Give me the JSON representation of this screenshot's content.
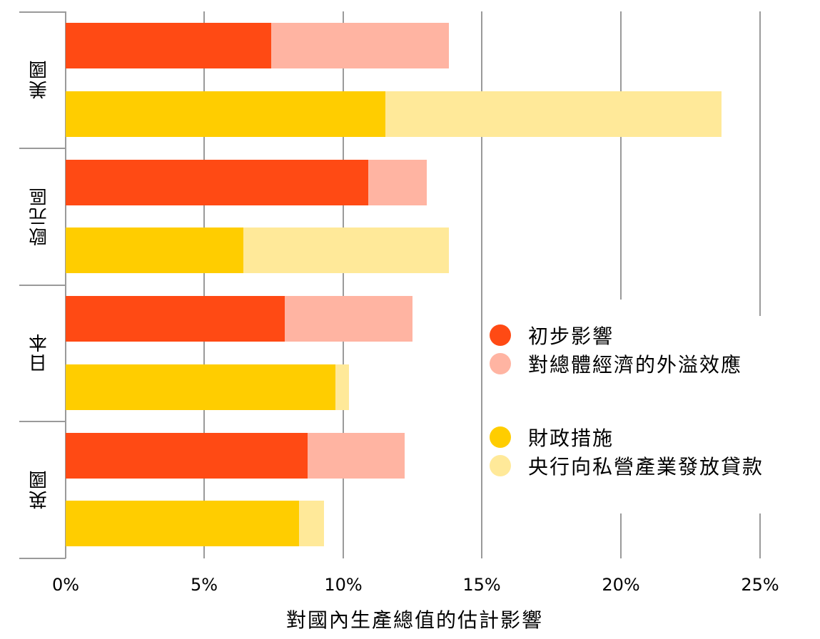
{
  "chart_data": {
    "type": "bar",
    "orientation": "horizontal",
    "stacked": true,
    "title": "",
    "xlabel": "對國內生產總值的估計影響",
    "ylabel": "",
    "xlim": [
      0,
      25
    ],
    "x_ticks": [
      "0%",
      "5%",
      "10%",
      "15%",
      "20%",
      "25%"
    ],
    "grid": true,
    "legend_position": "right-middle",
    "categories": [
      "美國",
      "歐元區",
      "日本",
      "英國"
    ],
    "bar_groups": [
      {
        "name": "財政措施 (紅)",
        "rows": "first bar in each category"
      },
      {
        "name": "央行向私營產業發放貸款 (黃)",
        "rows": "second bar in each category"
      }
    ],
    "series": [
      {
        "name": "初步影響",
        "color": "#FF4A14",
        "bar": "red",
        "values": [
          7.4,
          10.9,
          7.9,
          8.7
        ]
      },
      {
        "name": "對總體經濟的外溢效應",
        "color": "#FFB4A2",
        "bar": "red",
        "values": [
          6.4,
          2.1,
          4.6,
          3.5
        ]
      },
      {
        "name": "財政措施",
        "color": "#FFCD00",
        "bar": "yellow",
        "values": [
          11.5,
          6.4,
          9.7,
          8.4
        ]
      },
      {
        "name": "央行向私營產業發放貸款",
        "color": "#FFE999",
        "bar": "yellow",
        "values": [
          12.1,
          7.4,
          0.5,
          0.9
        ]
      }
    ],
    "totals": {
      "red": [
        13.8,
        13.0,
        12.5,
        12.2
      ],
      "yellow": [
        23.6,
        13.8,
        10.2,
        9.3
      ]
    }
  },
  "labels": {
    "categories": [
      "美國",
      "歐元區",
      "日本",
      "英國"
    ],
    "ticks": [
      "0%",
      "5%",
      "10%",
      "15%",
      "20%",
      "25%"
    ],
    "x_title": "對國內生產總值的估計影響",
    "legend": [
      "初步影響",
      "對總體經濟的外溢效應",
      "財政措施",
      "央行向私營產業發放貸款"
    ]
  },
  "colors": {
    "red_dark": "#FF4A14",
    "red_light": "#FFB4A2",
    "yellow_dark": "#FFCD00",
    "yellow_light": "#FFE999",
    "grid": "#9a9a9a"
  }
}
